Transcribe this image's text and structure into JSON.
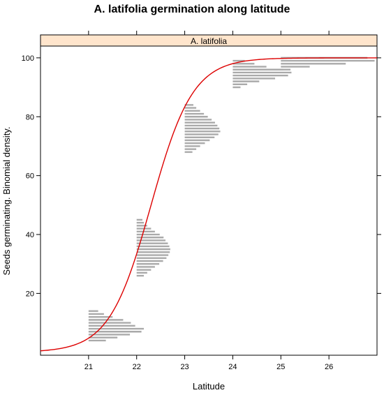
{
  "chart_data": {
    "type": "line",
    "title": "A. latifolia germination along latitude",
    "xlabel": "Latitude",
    "ylabel": "Seeds germinating.  Binomial density.",
    "panel_label": "A. latifolia",
    "xlim": [
      20,
      27
    ],
    "ylim": [
      -1,
      104
    ],
    "x_ticks": [
      21,
      22,
      23,
      24,
      25,
      26
    ],
    "y_ticks": [
      20,
      40,
      60,
      80,
      100
    ],
    "curve": {
      "color": "#dd0000",
      "x0": 22.3,
      "slope": 2.3,
      "upper": 100,
      "x_range": [
        20,
        27
      ]
    },
    "density_groups": [
      {
        "x": 21,
        "bars": [
          {
            "y": 14,
            "len": 0.2
          },
          {
            "y": 13,
            "len": 0.32
          },
          {
            "y": 12,
            "len": 0.5
          },
          {
            "y": 11,
            "len": 0.72
          },
          {
            "y": 10,
            "len": 0.88
          },
          {
            "y": 9,
            "len": 0.97
          },
          {
            "y": 8,
            "len": 1.15
          },
          {
            "y": 7,
            "len": 1.1
          },
          {
            "y": 6,
            "len": 0.86
          },
          {
            "y": 5,
            "len": 0.6
          },
          {
            "y": 4,
            "len": 0.36
          }
        ]
      },
      {
        "x": 22,
        "bars": [
          {
            "y": 45,
            "len": 0.12
          },
          {
            "y": 44,
            "len": 0.15
          },
          {
            "y": 43,
            "len": 0.22
          },
          {
            "y": 42,
            "len": 0.3
          },
          {
            "y": 41,
            "len": 0.38
          },
          {
            "y": 40,
            "len": 0.48
          },
          {
            "y": 39,
            "len": 0.56
          },
          {
            "y": 38,
            "len": 0.6
          },
          {
            "y": 37,
            "len": 0.65
          },
          {
            "y": 36,
            "len": 0.68
          },
          {
            "y": 35,
            "len": 0.7
          },
          {
            "y": 34,
            "len": 0.69
          },
          {
            "y": 33,
            "len": 0.66
          },
          {
            "y": 32,
            "len": 0.62
          },
          {
            "y": 31,
            "len": 0.55
          },
          {
            "y": 30,
            "len": 0.47
          },
          {
            "y": 29,
            "len": 0.38
          },
          {
            "y": 28,
            "len": 0.3
          },
          {
            "y": 27,
            "len": 0.22
          },
          {
            "y": 26,
            "len": 0.15
          }
        ]
      },
      {
        "x": 23,
        "bars": [
          {
            "y": 84,
            "len": 0.18
          },
          {
            "y": 83,
            "len": 0.24
          },
          {
            "y": 82,
            "len": 0.32
          },
          {
            "y": 81,
            "len": 0.4
          },
          {
            "y": 80,
            "len": 0.48
          },
          {
            "y": 79,
            "len": 0.56
          },
          {
            "y": 78,
            "len": 0.63
          },
          {
            "y": 77,
            "len": 0.68
          },
          {
            "y": 76,
            "len": 0.72
          },
          {
            "y": 75,
            "len": 0.74
          },
          {
            "y": 74,
            "len": 0.7
          },
          {
            "y": 73,
            "len": 0.62
          },
          {
            "y": 72,
            "len": 0.52
          },
          {
            "y": 71,
            "len": 0.42
          },
          {
            "y": 70,
            "len": 0.32
          },
          {
            "y": 69,
            "len": 0.24
          },
          {
            "y": 68,
            "len": 0.16
          }
        ]
      },
      {
        "x": 24,
        "bars": [
          {
            "y": 99,
            "len": 0.25
          },
          {
            "y": 98,
            "len": 0.45
          },
          {
            "y": 97,
            "len": 0.7
          },
          {
            "y": 96,
            "len": 1.05
          },
          {
            "y": 95,
            "len": 1.22
          },
          {
            "y": 94,
            "len": 1.15
          },
          {
            "y": 93,
            "len": 0.88
          },
          {
            "y": 92,
            "len": 0.55
          },
          {
            "y": 91,
            "len": 0.3
          },
          {
            "y": 90,
            "len": 0.16
          }
        ]
      },
      {
        "x": 25,
        "bars": [
          {
            "y": 100,
            "len": 1.8
          },
          {
            "y": 99,
            "len": 1.95
          },
          {
            "y": 98,
            "len": 1.35
          },
          {
            "y": 97,
            "len": 0.6
          },
          {
            "y": 96,
            "len": 0.2
          }
        ]
      }
    ],
    "bar_color": "#aaaaaa",
    "strip_fill": "#ffe5cc",
    "grid": false
  }
}
